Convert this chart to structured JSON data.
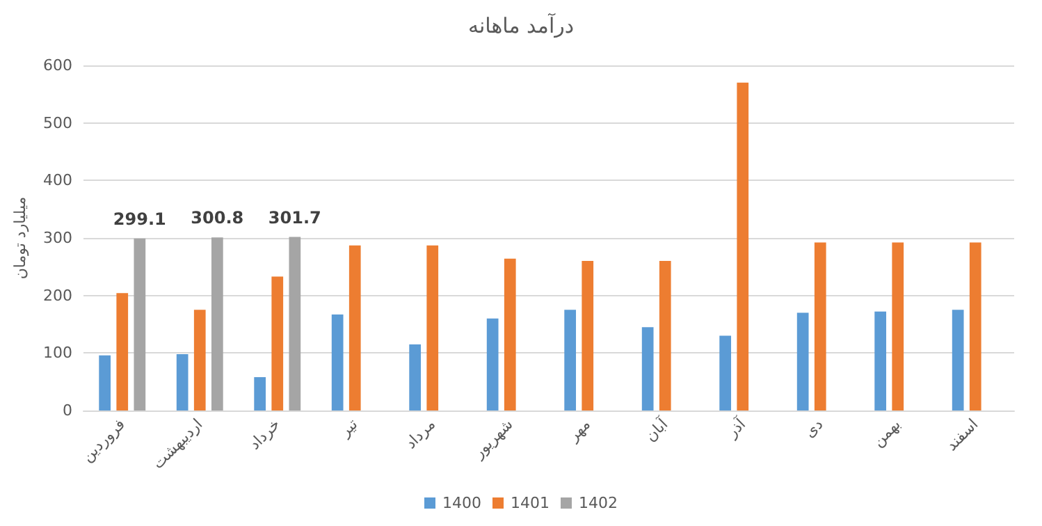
{
  "chart_data": {
    "type": "bar",
    "title": "درآمد ماهانه",
    "ylabel": "میلیارد تومان",
    "categories": [
      "فروردین",
      "اردیبهشت",
      "خرداد",
      "تیر",
      "مرداد",
      "شهریور",
      "مهر",
      "آبان",
      "آذر",
      "دی",
      "بهمن",
      "اسفند"
    ],
    "series": [
      {
        "name": "1400",
        "color": "#5b9bd5",
        "values": [
          96,
          98,
          58,
          167,
          115,
          160,
          175,
          145,
          130,
          170,
          172,
          175
        ]
      },
      {
        "name": "1401",
        "color": "#ed7d31",
        "values": [
          204,
          175,
          233,
          287,
          287,
          264,
          260,
          260,
          570,
          292,
          292,
          292
        ]
      },
      {
        "name": "1402",
        "color": "#a5a5a5",
        "values": [
          299.1,
          300.8,
          301.7,
          null,
          null,
          null,
          null,
          null,
          null,
          null,
          null,
          null
        ],
        "value_labels": [
          "299.1",
          "300.8",
          "301.7",
          null,
          null,
          null,
          null,
          null,
          null,
          null,
          null,
          null
        ]
      }
    ],
    "ylim": [
      0,
      600
    ],
    "yticks": [
      0,
      100,
      200,
      300,
      400,
      500,
      600
    ],
    "grid": "y",
    "legend": "bottom"
  }
}
